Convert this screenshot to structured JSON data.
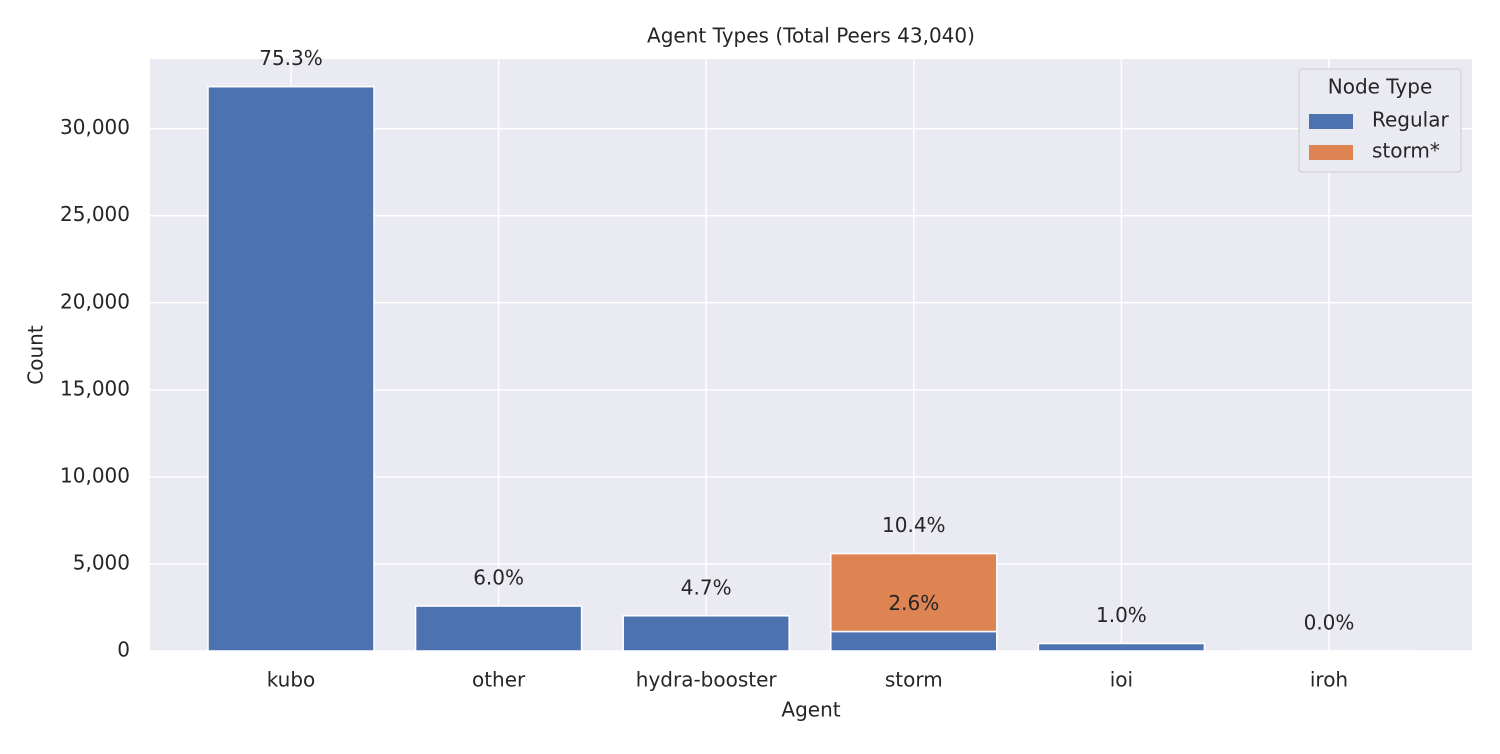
{
  "chart_data": {
    "type": "bar",
    "stacked": true,
    "title": "Agent Types (Total Peers 43,040)",
    "x_label": "Agent",
    "y_label": "Count",
    "categories": [
      "kubo",
      "other",
      "hydra-booster",
      "storm",
      "ioi",
      "iroh"
    ],
    "series": [
      {
        "name": "Regular",
        "color": "#4c72b0",
        "values": [
          32409,
          2582,
          2023,
          1119,
          430,
          5
        ],
        "value_labels": [
          "75.3%",
          "6.0%",
          "4.7%",
          "2.6%",
          "1.0%",
          "0.0%"
        ]
      },
      {
        "name": "storm*",
        "color": "#dd8452",
        "values": [
          null,
          null,
          null,
          4476,
          null,
          null
        ],
        "value_labels": [
          null,
          null,
          null,
          "10.4%",
          null,
          null
        ]
      }
    ],
    "ylim": [
      0,
      34000
    ],
    "yticks": [
      0,
      {
        "value": 5000,
        "label": "5,000"
      },
      {
        "value": 10000,
        "label": "10,000"
      },
      {
        "value": 15000,
        "label": "15,000"
      },
      {
        "value": 20000,
        "label": "20,000"
      },
      {
        "value": 25000,
        "label": "25,000"
      },
      {
        "value": 30000,
        "label": "30,000"
      }
    ],
    "grid": true,
    "legend": {
      "title": "Node Type",
      "position": "upper right"
    }
  }
}
